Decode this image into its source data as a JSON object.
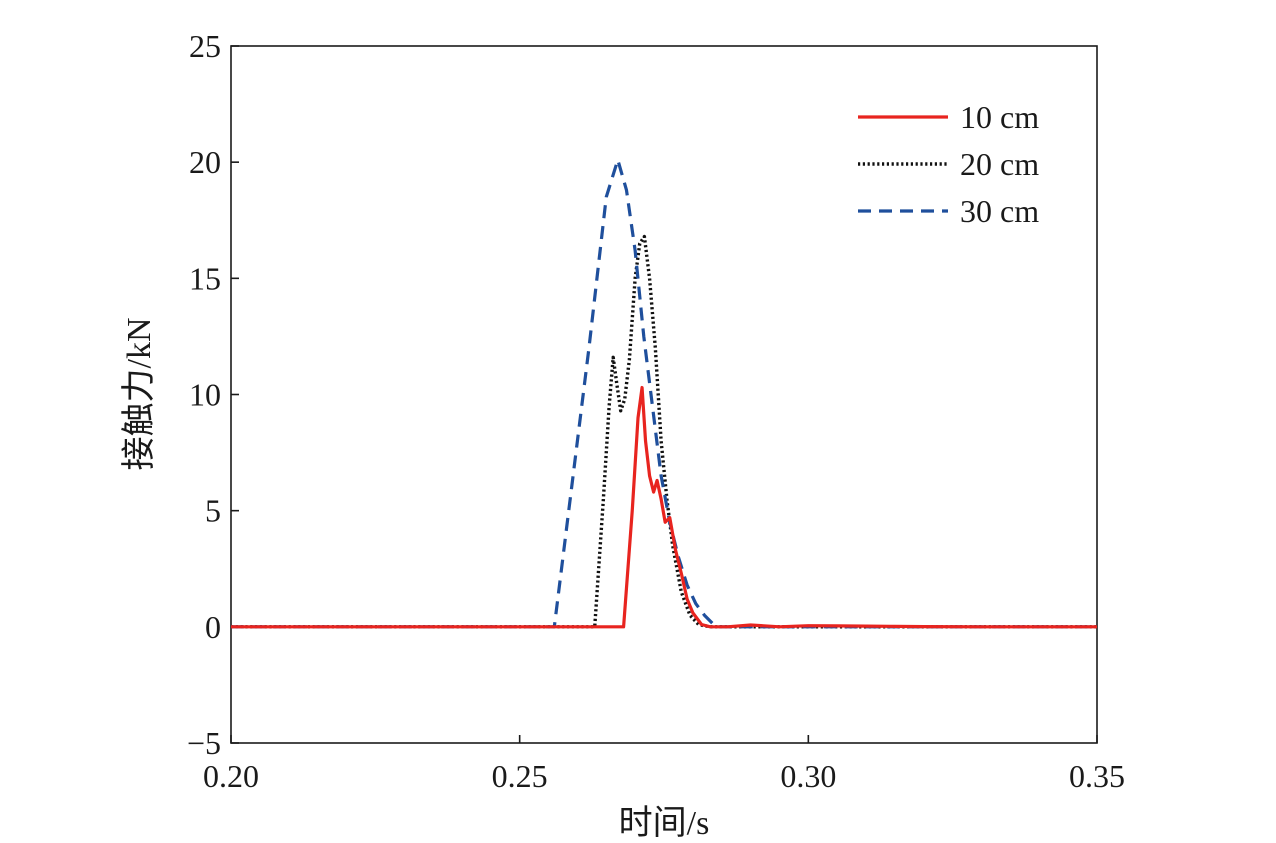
{
  "chart_data": {
    "type": "line",
    "title": "",
    "xlabel": "时间/s",
    "ylabel": "接触力/kN",
    "xlim": [
      0.2,
      0.35
    ],
    "ylim": [
      -5,
      25
    ],
    "xticks": [
      0.2,
      0.25,
      0.3,
      0.35
    ],
    "xtick_labels": [
      "0.20",
      "0.25",
      "0.30",
      "0.35"
    ],
    "yticks": [
      -5,
      0,
      5,
      10,
      15,
      20,
      25
    ],
    "ytick_labels": [
      "−5",
      "0",
      "5",
      "10",
      "15",
      "20",
      "25"
    ],
    "grid": false,
    "legend_position": "top-right",
    "series": [
      {
        "name": "10 cm",
        "color": "#e8241f",
        "dash": "solid",
        "x": [
          0.2,
          0.268,
          0.2695,
          0.2705,
          0.2712,
          0.2718,
          0.2725,
          0.2732,
          0.2738,
          0.2745,
          0.2752,
          0.276,
          0.277,
          0.278,
          0.279,
          0.28,
          0.2815,
          0.283,
          0.286,
          0.29,
          0.295,
          0.3,
          0.305,
          0.31,
          0.315,
          0.32,
          0.33,
          0.35
        ],
        "y": [
          0,
          0,
          5.0,
          9.0,
          10.3,
          8.0,
          6.5,
          5.8,
          6.3,
          5.5,
          4.5,
          4.7,
          3.3,
          2.3,
          1.2,
          0.6,
          0.1,
          0,
          0,
          0.08,
          0,
          0.05,
          0.04,
          0.03,
          0.02,
          0.01,
          0,
          0
        ]
      },
      {
        "name": "20 cm",
        "color": "#111111",
        "dash": "dotted",
        "x": [
          0.2,
          0.263,
          0.2645,
          0.2655,
          0.2662,
          0.2668,
          0.2675,
          0.2682,
          0.269,
          0.27,
          0.2708,
          0.2716,
          0.2725,
          0.2735,
          0.2745,
          0.2755,
          0.2765,
          0.278,
          0.2795,
          0.281,
          0.283,
          0.286,
          0.3,
          0.35
        ],
        "y": [
          0,
          0,
          5.5,
          9.5,
          11.6,
          10.5,
          9.3,
          9.8,
          11.5,
          15.0,
          16.5,
          16.8,
          15.0,
          12.0,
          8.0,
          5.5,
          3.5,
          1.5,
          0.5,
          0.1,
          0,
          0,
          0,
          0
        ]
      },
      {
        "name": "30 cm",
        "color": "#1f4f9c",
        "dash": "dashed",
        "x": [
          0.2,
          0.256,
          0.259,
          0.262,
          0.265,
          0.267,
          0.2685,
          0.27,
          0.2715,
          0.273,
          0.2745,
          0.276,
          0.2775,
          0.279,
          0.2805,
          0.282,
          0.284,
          0.286,
          0.3,
          0.35
        ],
        "y": [
          0,
          0,
          6.0,
          12.0,
          18.5,
          20.1,
          18.8,
          16.2,
          12.5,
          9.5,
          6.5,
          4.5,
          3.0,
          1.8,
          1.0,
          0.5,
          0,
          0,
          0,
          0
        ]
      }
    ]
  }
}
